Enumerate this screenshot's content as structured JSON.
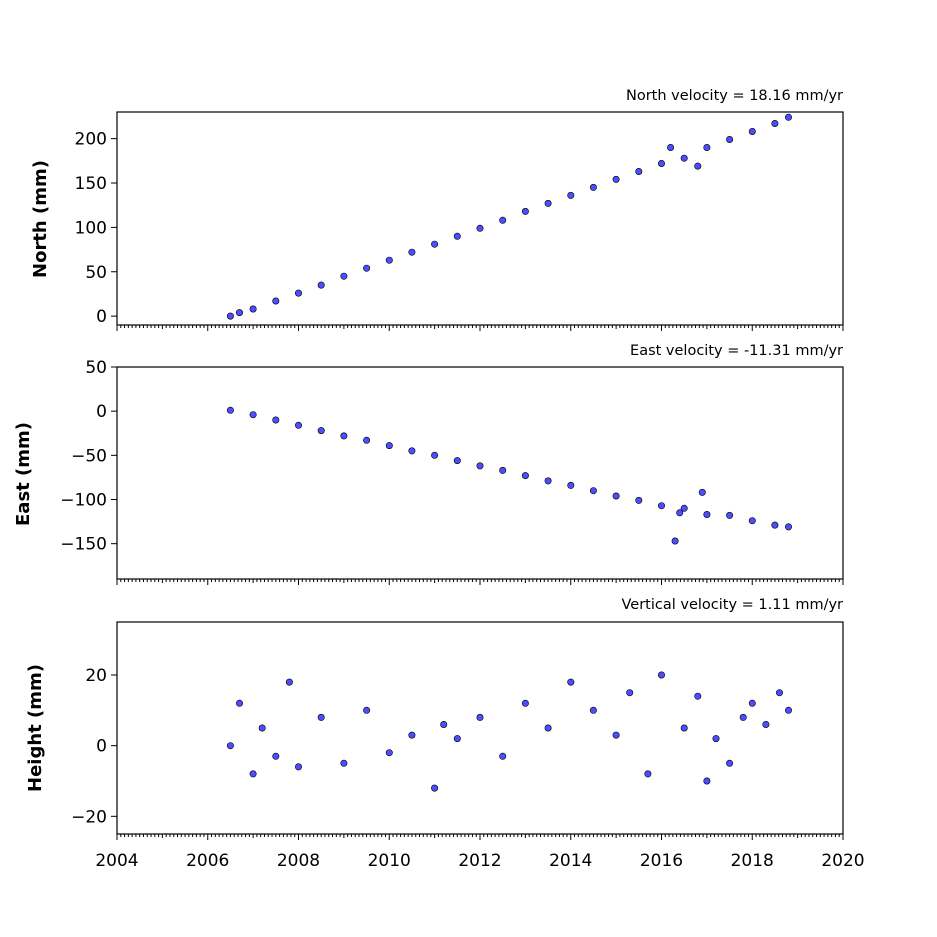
{
  "chart_data": [
    {
      "type": "scatter",
      "title": "North velocity = 18.16 mm/yr",
      "ylabel": "North (mm)",
      "xlim": [
        2004,
        2020
      ],
      "ylim": [
        -10,
        230
      ],
      "yticks": [
        0,
        50,
        100,
        150,
        200
      ],
      "marker_color": "#4d4dff",
      "edge_color": "#000000",
      "series": [
        {
          "x": [
            2006.5,
            2006.7,
            2007.0,
            2007.5,
            2008.0,
            2008.5,
            2009.0,
            2009.5,
            2010.0,
            2010.5,
            2011.0,
            2011.5,
            2012.0,
            2012.5,
            2013.0,
            2013.5,
            2014.0,
            2014.5,
            2015.0,
            2015.5,
            2016.0,
            2016.2,
            2016.5,
            2016.8,
            2017.0,
            2017.5,
            2018.0,
            2018.5,
            2018.8
          ],
          "y": [
            0,
            4,
            8,
            17,
            26,
            35,
            45,
            54,
            63,
            72,
            81,
            90,
            99,
            108,
            118,
            127,
            136,
            145,
            154,
            163,
            172,
            190,
            178,
            169,
            190,
            199,
            208,
            217,
            224
          ]
        }
      ]
    },
    {
      "type": "scatter",
      "title": "East velocity = -11.31 mm/yr",
      "ylabel": "East (mm)",
      "xlim": [
        2004,
        2020
      ],
      "ylim": [
        -190,
        50
      ],
      "yticks": [
        50,
        0,
        -50,
        -100,
        -150
      ],
      "marker_color": "#4d4dff",
      "edge_color": "#000000",
      "series": [
        {
          "x": [
            2006.5,
            2007.0,
            2007.5,
            2008.0,
            2008.5,
            2009.0,
            2009.5,
            2010.0,
            2010.5,
            2011.0,
            2011.5,
            2012.0,
            2012.5,
            2013.0,
            2013.5,
            2014.0,
            2014.5,
            2015.0,
            2015.5,
            2016.0,
            2016.3,
            2016.4,
            2016.5,
            2016.9,
            2017.0,
            2017.5,
            2018.0,
            2018.5,
            2018.8
          ],
          "y": [
            1,
            -4,
            -10,
            -16,
            -22,
            -28,
            -33,
            -39,
            -45,
            -50,
            -56,
            -62,
            -67,
            -73,
            -79,
            -84,
            -90,
            -96,
            -101,
            -107,
            -147,
            -115,
            -110,
            -92,
            -117,
            -118,
            -124,
            -129,
            -131
          ]
        }
      ]
    },
    {
      "type": "scatter",
      "title": "Vertical velocity = 1.11 mm/yr",
      "ylabel": "Height (mm)",
      "xlabel": "",
      "xlim": [
        2004,
        2020
      ],
      "ylim": [
        -25,
        35
      ],
      "yticks": [
        20,
        0,
        -20
      ],
      "xticks": [
        "2004",
        "2006",
        "2008",
        "2010",
        "2012",
        "2014",
        "2016",
        "2018",
        "2020"
      ],
      "marker_color": "#4d4dff",
      "edge_color": "#000000",
      "series": [
        {
          "x": [
            2006.5,
            2006.7,
            2007.0,
            2007.2,
            2007.5,
            2007.8,
            2008.0,
            2008.5,
            2009.0,
            2009.5,
            2010.0,
            2010.5,
            2011.0,
            2011.2,
            2011.5,
            2012.0,
            2012.5,
            2013.0,
            2013.5,
            2014.0,
            2014.5,
            2015.0,
            2015.3,
            2015.7,
            2016.0,
            2016.5,
            2016.8,
            2017.0,
            2017.2,
            2017.5,
            2017.8,
            2018.0,
            2018.3,
            2018.6,
            2018.8
          ],
          "y": [
            0,
            12,
            -8,
            5,
            -3,
            18,
            -6,
            8,
            -5,
            10,
            -2,
            3,
            -12,
            6,
            2,
            8,
            -3,
            12,
            5,
            18,
            10,
            3,
            15,
            -8,
            20,
            5,
            14,
            -10,
            2,
            -5,
            8,
            12,
            6,
            15,
            10
          ]
        }
      ]
    }
  ]
}
